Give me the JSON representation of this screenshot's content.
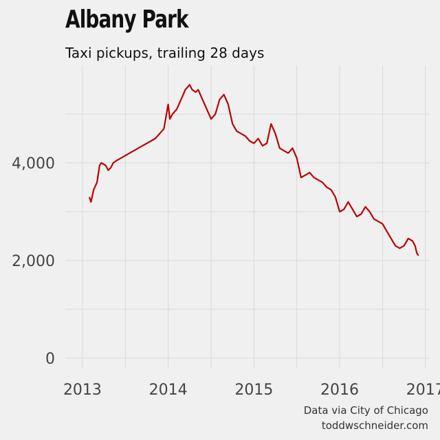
{
  "title": "Albany Park",
  "subtitle": "Taxi pickups, trailing 28 days",
  "credit_line1": "Data via City of Chicago",
  "credit_line2": "toddwschneider.com",
  "colors": {
    "line": "#bb0000",
    "background": "#f0f0f0",
    "grid": "#d9d9d9"
  },
  "chart_data": {
    "type": "line",
    "title": "Albany Park",
    "subtitle": "Taxi pickups, trailing 28 days",
    "xlabel": "",
    "ylabel": "",
    "xlim": [
      2012.8,
      2017.05
    ],
    "ylim": [
      -200,
      6000
    ],
    "grid": true,
    "x_ticks": [
      2013,
      2014,
      2015,
      2016,
      2017
    ],
    "x_tick_labels": [
      "2013",
      "2014",
      "2015",
      "2016",
      "2017"
    ],
    "y_ticks": [
      0,
      2000,
      4000
    ],
    "y_tick_labels": [
      "0",
      "2,000",
      "4,000"
    ],
    "series": [
      {
        "name": "Taxi pickups, trailing 28 days",
        "x": [
          2013.08,
          2013.1,
          2013.13,
          2013.17,
          2013.2,
          2013.22,
          2013.27,
          2013.3,
          2013.33,
          2013.36,
          2013.4,
          2013.45,
          2013.5,
          2013.55,
          2013.6,
          2013.65,
          2013.7,
          2013.75,
          2013.8,
          2013.85,
          2013.9,
          2013.95,
          2014.0,
          2014.02,
          2014.05,
          2014.1,
          2014.15,
          2014.2,
          2014.25,
          2014.28,
          2014.32,
          2014.35,
          2014.4,
          2014.45,
          2014.5,
          2014.55,
          2014.6,
          2014.65,
          2014.7,
          2014.75,
          2014.8,
          2014.85,
          2014.9,
          2014.95,
          2015.0,
          2015.05,
          2015.1,
          2015.15,
          2015.2,
          2015.25,
          2015.3,
          2015.35,
          2015.4,
          2015.45,
          2015.5,
          2015.55,
          2015.6,
          2015.65,
          2015.7,
          2015.75,
          2015.8,
          2015.85,
          2015.9,
          2015.95,
          2016.0,
          2016.05,
          2016.1,
          2016.15,
          2016.2,
          2016.25,
          2016.3,
          2016.35,
          2016.4,
          2016.45,
          2016.5,
          2016.55,
          2016.6,
          2016.65,
          2016.7,
          2016.75,
          2016.8,
          2016.85,
          2016.88,
          2016.9,
          2016.92
        ],
        "y": [
          3300,
          3200,
          3450,
          3600,
          3950,
          4000,
          3950,
          3850,
          3900,
          4000,
          4050,
          4100,
          4150,
          4200,
          4250,
          4300,
          4350,
          4400,
          4450,
          4500,
          4600,
          4700,
          5200,
          4900,
          5000,
          5100,
          5300,
          5500,
          5600,
          5500,
          5450,
          5500,
          5300,
          5100,
          4900,
          5000,
          5300,
          5400,
          5200,
          4800,
          4650,
          4600,
          4550,
          4450,
          4400,
          4500,
          4350,
          4400,
          4800,
          4600,
          4300,
          4250,
          4200,
          4300,
          4100,
          3700,
          3750,
          3800,
          3700,
          3650,
          3600,
          3500,
          3450,
          3300,
          3000,
          3050,
          3200,
          3050,
          2900,
          2950,
          3100,
          3000,
          2850,
          2800,
          2750,
          2600,
          2450,
          2300,
          2250,
          2300,
          2450,
          2400,
          2300,
          2150,
          2100
        ]
      }
    ]
  }
}
